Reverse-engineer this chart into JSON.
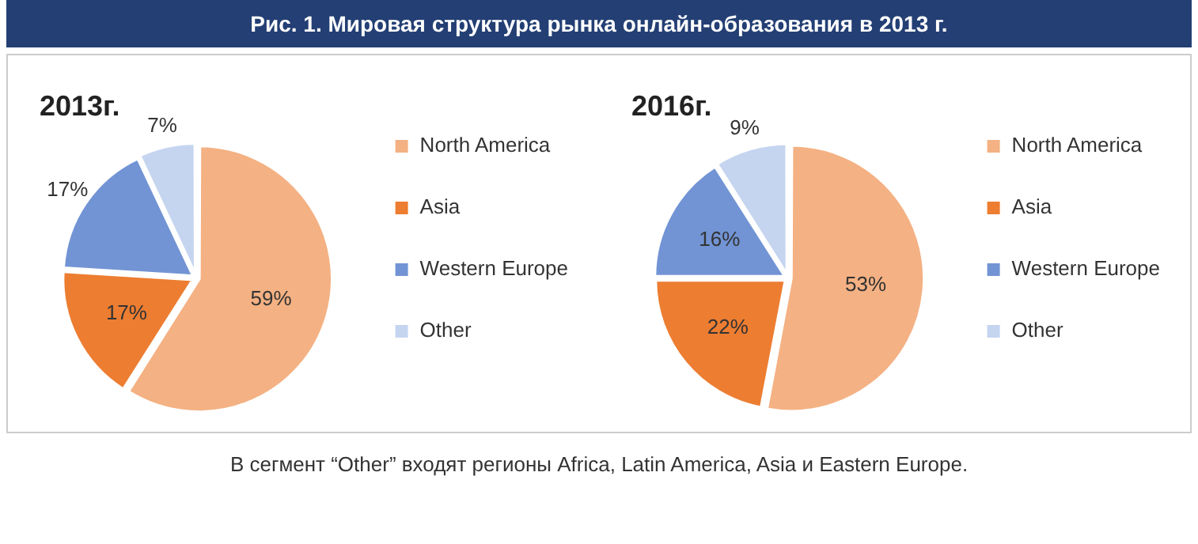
{
  "chart_data": [
    {
      "type": "pie",
      "title": "Рис. 1. Мировая структура рынка онлайн-образования в 2013 г.",
      "subtitle": "2013г.",
      "categories": [
        "North America",
        "Asia",
        "Western Europe",
        "Other"
      ],
      "values": [
        59,
        17,
        17,
        7
      ],
      "value_labels": [
        "59%",
        "17%",
        "17%",
        "7%"
      ],
      "colors": [
        "#f4b183",
        "#ed7d31",
        "#7294d4",
        "#c5d5f0"
      ],
      "legend": "right"
    },
    {
      "type": "pie",
      "title": "2016г.",
      "categories": [
        "North America",
        "Asia",
        "Western Europe",
        "Other"
      ],
      "values": [
        53,
        22,
        16,
        9
      ],
      "value_labels": [
        "53%",
        "22%",
        "16%",
        "9%"
      ],
      "colors": [
        "#f4b183",
        "#ed7d31",
        "#7294d4",
        "#c5d5f0"
      ],
      "legend": "right",
      "annotations": [
        "В сегмент “Other” входят регионы Africa, Latin America, Asia и Eastern Europe."
      ]
    }
  ]
}
